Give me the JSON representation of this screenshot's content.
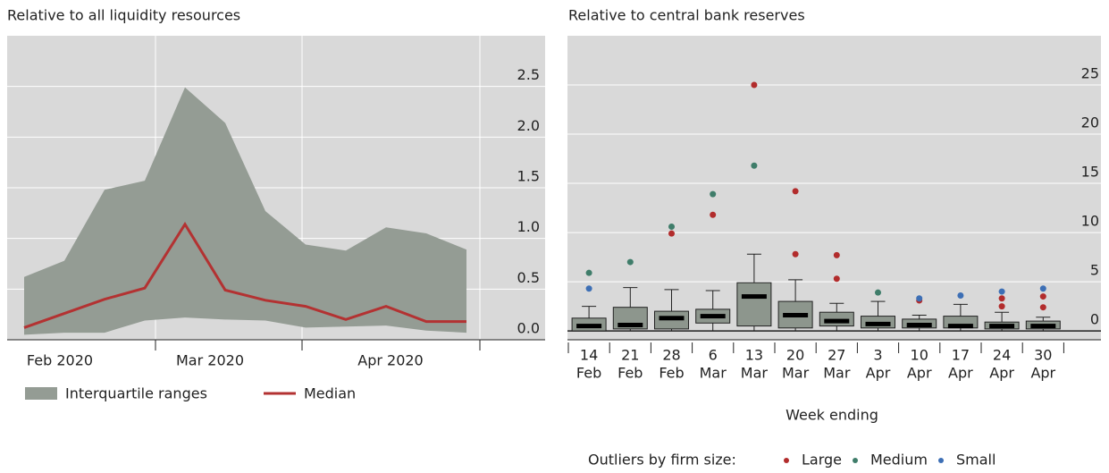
{
  "chart_data": [
    {
      "type": "area-line",
      "title": "Relative to all liquidity resources",
      "categories": [
        null,
        null,
        null,
        null,
        null,
        null,
        null,
        null,
        null,
        null,
        null,
        null
      ],
      "month_labels": [
        "Feb 2020",
        "Mar 2020",
        "Apr 2020"
      ],
      "series": [
        {
          "name": "Interquartile ranges",
          "color": "#949c94",
          "low": [
            0.05,
            0.07,
            0.07,
            0.19,
            0.22,
            0.2,
            0.19,
            0.12,
            0.13,
            0.14,
            0.09,
            0.07
          ],
          "high": [
            0.62,
            0.78,
            1.48,
            1.57,
            2.49,
            2.14,
            1.27,
            0.94,
            0.88,
            1.11,
            1.05,
            0.89
          ]
        },
        {
          "name": "Median",
          "color": "#b33232",
          "values": [
            0.12,
            0.26,
            0.4,
            0.51,
            1.14,
            0.49,
            0.39,
            0.33,
            0.2,
            0.33,
            0.18,
            0.18
          ]
        }
      ],
      "ylim": [
        0,
        3
      ],
      "yticks": [
        {
          "value": 0,
          "label": "0.0"
        },
        0.5,
        {
          "value": 1,
          "label": "1.0"
        },
        1.5,
        {
          "value": 2,
          "label": "2.0"
        },
        2.5
      ],
      "grid": true
    },
    {
      "type": "box",
      "title": "Relative to central bank reserves",
      "x_label": "Week ending",
      "categories": [
        [
          "14",
          "Feb"
        ],
        [
          "21",
          "Feb"
        ],
        [
          "28",
          "Feb"
        ],
        [
          "6",
          "Mar"
        ],
        [
          "13",
          "Mar"
        ],
        [
          "20",
          "Mar"
        ],
        [
          "27",
          "Mar"
        ],
        [
          "3",
          "Apr"
        ],
        [
          "10",
          "Apr"
        ],
        [
          "17",
          "Apr"
        ],
        [
          "24",
          "Apr"
        ],
        [
          "30",
          "Apr"
        ]
      ],
      "box_color": "#8d968d",
      "whisker_low": [
        0,
        0,
        0,
        0,
        0,
        0,
        0,
        0,
        0,
        0,
        0,
        0
      ],
      "q1": [
        0,
        0.2,
        0.2,
        0.8,
        0.5,
        0.3,
        0.5,
        0.3,
        0.3,
        0.3,
        0.2,
        0.2
      ],
      "median": [
        0.5,
        0.6,
        1.3,
        1.5,
        3.5,
        1.6,
        1.0,
        0.7,
        0.6,
        0.5,
        0.5,
        0.5
      ],
      "q3": [
        1.3,
        2.4,
        2.0,
        2.2,
        4.9,
        3.0,
        1.9,
        1.5,
        1.2,
        1.5,
        0.9,
        1.0
      ],
      "whisker_high": [
        2.5,
        4.4,
        4.2,
        4.1,
        7.8,
        5.2,
        2.8,
        3.0,
        1.6,
        2.7,
        1.9,
        1.4
      ],
      "outlier_legend_title": "Outliers by firm size:",
      "outliers": [
        {
          "name": "Large",
          "color": "#b22c2c",
          "values": [
            [],
            [],
            [
              9.9
            ],
            [
              11.8
            ],
            [
              25
            ],
            [
              14.2,
              7.8
            ],
            [
              7.7,
              5.3
            ],
            [],
            [
              3.1
            ],
            [],
            [
              3.3,
              2.5
            ],
            [
              3.5,
              2.4
            ]
          ]
        },
        {
          "name": "Medium",
          "color": "#3f7d6a",
          "values": [
            [
              5.9
            ],
            [
              7.0
            ],
            [
              10.6
            ],
            [
              13.9
            ],
            [
              16.8
            ],
            [],
            [],
            [
              3.9
            ],
            [],
            [],
            [],
            []
          ]
        },
        {
          "name": "Small",
          "color": "#3d6fb5",
          "values": [
            [
              4.3
            ],
            [],
            [],
            [],
            [],
            [],
            [],
            [],
            [
              3.3
            ],
            [
              3.6
            ],
            [
              4.0
            ],
            [
              4.3
            ]
          ]
        }
      ],
      "ylim": [
        -0.9,
        30
      ],
      "yticks": [
        0,
        5,
        10,
        15,
        20,
        25
      ],
      "grid": true
    }
  ]
}
